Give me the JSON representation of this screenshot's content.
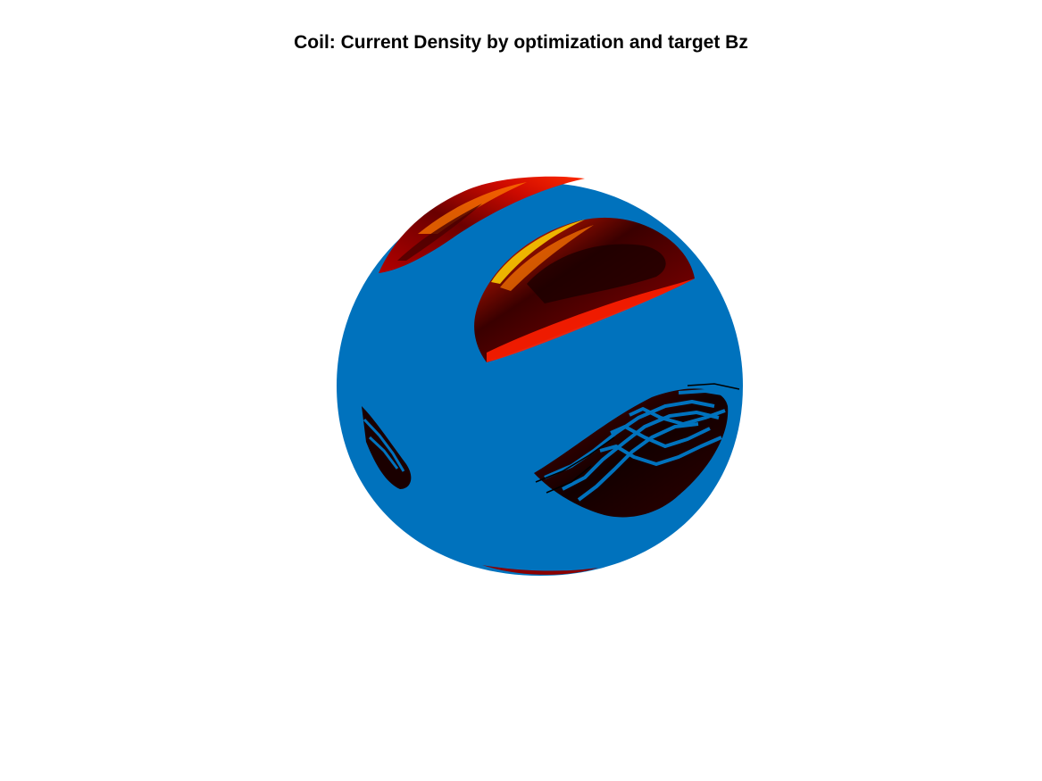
{
  "chart_data": {
    "type": "surface",
    "title": "Coil: Current Density by optimization and target Bz",
    "axes_visible": false,
    "grid": false,
    "legend": "none",
    "colorbar": false,
    "surface": {
      "shape": "sphere",
      "base_color": "#0072BD",
      "colormap": "hot",
      "colormap_stops": [
        "#000000",
        "#5a0000",
        "#b40000",
        "#ff1e00",
        "#ff7a00",
        "#ffd400"
      ]
    }
  }
}
